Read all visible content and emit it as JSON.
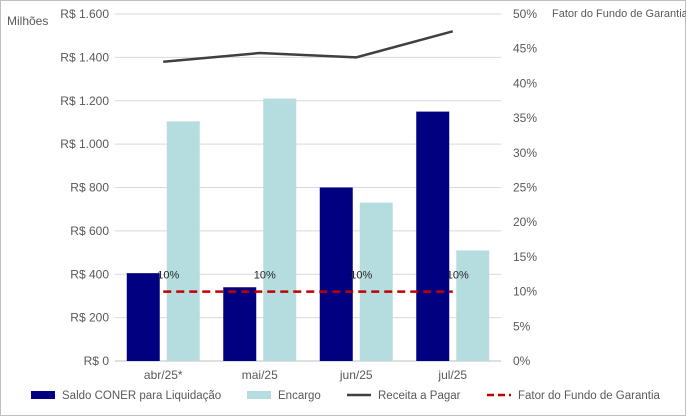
{
  "chart_data": {
    "type": "bar",
    "categories": [
      "abr/25*",
      "mai/25",
      "jun/25",
      "jul/25"
    ],
    "y_unit_label": "Milhões",
    "y2_title": "Fator do Fundo de Garantia",
    "ylim": [
      0,
      1600
    ],
    "y_ticks": [
      0,
      200,
      400,
      600,
      800,
      1000,
      1200,
      1400,
      1600
    ],
    "y_tick_labels": [
      "R$ 0",
      "R$ 200",
      "R$ 400",
      "R$ 600",
      "R$ 800",
      "R$ 1.000",
      "R$ 1.200",
      "R$ 1.400",
      "R$ 1.600"
    ],
    "y2lim": [
      0,
      50
    ],
    "y2_ticks": [
      0,
      5,
      10,
      15,
      20,
      25,
      30,
      35,
      40,
      45,
      50
    ],
    "y2_tick_labels": [
      "0%",
      "5%",
      "10%",
      "15%",
      "20%",
      "25%",
      "30%",
      "35%",
      "40%",
      "45%",
      "50%"
    ],
    "series": [
      {
        "name": "Saldo CONER para Liquidação",
        "kind": "bar",
        "axis": "left",
        "color": "#000080",
        "values": [
          405,
          340,
          800,
          1150
        ]
      },
      {
        "name": "Encargo",
        "kind": "bar",
        "axis": "left",
        "color": "#b5dde0",
        "values": [
          1105,
          1210,
          730,
          510
        ]
      },
      {
        "name": "Receita a Pagar",
        "kind": "line",
        "axis": "left",
        "color": "#404040",
        "values": [
          1380,
          1420,
          1400,
          1520
        ]
      },
      {
        "name": "Fator do Fundo de Garantia",
        "kind": "dashed-line",
        "axis": "right",
        "color": "#c00000",
        "values": [
          10,
          10,
          10,
          10
        ],
        "data_labels": [
          "10%",
          "10%",
          "10%",
          "10%"
        ]
      }
    ],
    "grid": "horizontal",
    "legend_position": "bottom"
  }
}
